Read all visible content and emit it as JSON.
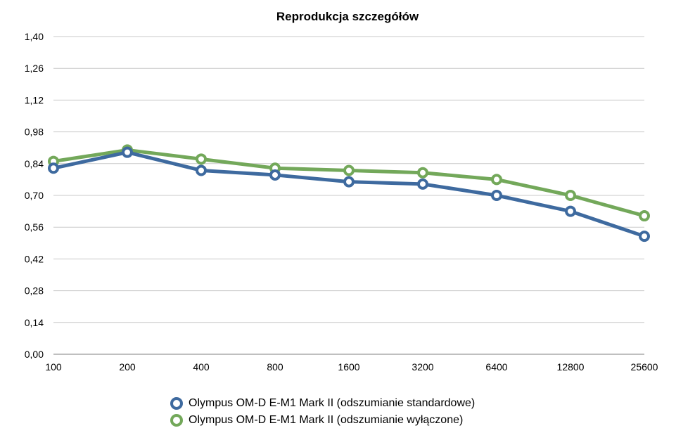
{
  "chart_data": {
    "type": "line",
    "title": "Reprodukcja szczegółów",
    "xlabel": "",
    "ylabel": "",
    "categories": [
      "100",
      "200",
      "400",
      "800",
      "1600",
      "3200",
      "6400",
      "12800",
      "25600"
    ],
    "y_ticks": [
      "0,00",
      "0,14",
      "0,28",
      "0,42",
      "0,56",
      "0,70",
      "0,84",
      "0,98",
      "1,12",
      "1,26",
      "1,40"
    ],
    "ylim": [
      0,
      1.4
    ],
    "grid": true,
    "legend_position": "bottom",
    "series": [
      {
        "name": "Olympus OM-D E-M1 Mark II (odszumianie standardowe)",
        "color": "#3e6a9f",
        "values": [
          0.82,
          0.89,
          0.81,
          0.79,
          0.76,
          0.75,
          0.7,
          0.63,
          0.52
        ]
      },
      {
        "name": "Olympus OM-D E-M1 Mark II (odszumianie wyłączone)",
        "color": "#73a85a",
        "values": [
          0.85,
          0.9,
          0.86,
          0.82,
          0.81,
          0.8,
          0.77,
          0.7,
          0.61
        ]
      }
    ]
  }
}
